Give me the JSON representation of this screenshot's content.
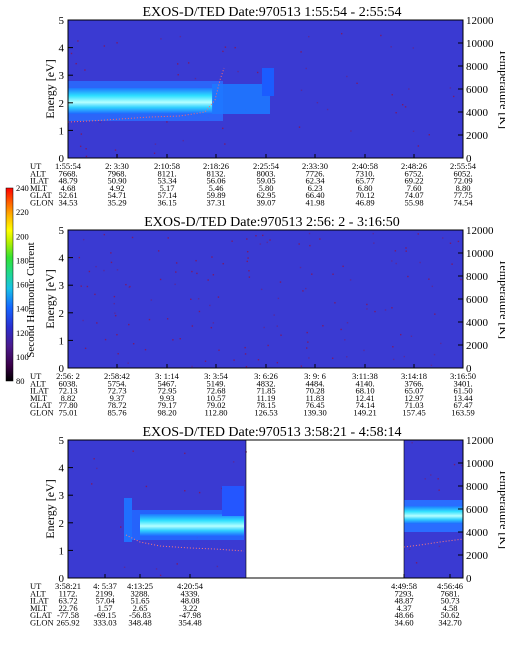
{
  "chart_data": [
    {
      "type": "heatmap",
      "title": "EXOS-D/TED   Date:970513  1:55:54 - 2:55:54",
      "ylabel": "Energy [eV]",
      "ylabel_right": "Temperature [K]",
      "ylim": [
        0,
        5
      ],
      "ylim_right": [
        0,
        12000
      ],
      "yticks": [
        "0",
        "1",
        "2",
        "3",
        "4",
        "5"
      ],
      "yticks_right": [
        "0",
        "2000",
        "4000",
        "6000",
        "8000",
        "10000",
        "12000"
      ],
      "band": {
        "from_time": "1:55:54",
        "to_time": "2:25:00",
        "energy_min": 1.6,
        "energy_max": 2.7,
        "note_level": "high"
      },
      "temperature_trace": "along band lower edge",
      "table": {
        "labels": [
          "UT",
          "ALT",
          "ILAT",
          "MLT",
          "GLAT",
          "GLON"
        ],
        "columns": [
          [
            "1:55:54",
            "7668.",
            "48.79",
            "4.68",
            "52.61",
            "34.53"
          ],
          [
            "2: 3:30",
            "7968.",
            "50.90",
            "4.92",
            "54.71",
            "35.29"
          ],
          [
            "2:10:58",
            "8121.",
            "53.34",
            "5.17",
            "57.14",
            "36.15"
          ],
          [
            "2:18:26",
            "8132.",
            "56.06",
            "5.46",
            "59.89",
            "37.31"
          ],
          [
            "2:25:54",
            "8003.",
            "59.05",
            "5.80",
            "62.95",
            "39.07"
          ],
          [
            "2:33:30",
            "7726.",
            "62.34",
            "6.23",
            "66.40",
            "41.98"
          ],
          [
            "2:40:58",
            "7310.",
            "65.77",
            "6.80",
            "70.12",
            "46.89"
          ],
          [
            "2:48:26",
            "6752.",
            "69.22",
            "7.60",
            "74.07",
            "55.98"
          ],
          [
            "2:55:54",
            "6052.",
            "72.09",
            "8.80",
            "77.75",
            "74.54"
          ]
        ]
      }
    },
    {
      "type": "heatmap",
      "title": "EXOS-D/TED   Date:970513  2:56: 2 - 3:16:50",
      "ylabel": "Energy [eV]",
      "ylabel_right": "Temperature [K]",
      "ylim": [
        0,
        5
      ],
      "ylim_right": [
        0,
        12000
      ],
      "yticks": [
        "0",
        "1",
        "2",
        "3",
        "4",
        "5"
      ],
      "yticks_right": [
        "0",
        "2000",
        "4000",
        "6000",
        "8000",
        "10000",
        "12000"
      ],
      "table": {
        "labels": [
          "UT",
          "ALT",
          "ILAT",
          "MLT",
          "GLAT",
          "GLON"
        ],
        "columns": [
          [
            "2:56: 2",
            "6038.",
            "72.13",
            "8.82",
            "77.80",
            "75.01"
          ],
          [
            "2:58:42",
            "5754.",
            "72.73",
            "9.37",
            "78.72",
            "85.76"
          ],
          [
            "3: 1:14",
            "5467.",
            "72.95",
            "9.93",
            "79.17",
            "98.20"
          ],
          [
            "3: 3:54",
            "5149.",
            "72.68",
            "10.57",
            "79.02",
            "112.80"
          ],
          [
            "3: 6:26",
            "4832.",
            "71.85",
            "11.19",
            "78.15",
            "126.53"
          ],
          [
            "3: 9: 6",
            "4484.",
            "70.28",
            "11.83",
            "76.45",
            "139.30"
          ],
          [
            "3:11:38",
            "4140.",
            "68.10",
            "12.41",
            "74.14",
            "149.21"
          ],
          [
            "3:14:18",
            "3766.",
            "65.07",
            "12.97",
            "71.03",
            "157.45"
          ],
          [
            "3:16:50",
            "3401.",
            "61.50",
            "13.44",
            "67.47",
            "163.59"
          ]
        ]
      }
    },
    {
      "type": "heatmap",
      "title": "EXOS-D/TED   Date:970513  3:58:21 - 4:58:14",
      "ylabel": "Energy [eV]",
      "ylabel_right": "Temperature [K]",
      "ylim": [
        0,
        5
      ],
      "ylim_right": [
        0,
        12000
      ],
      "yticks": [
        "0",
        "1",
        "2",
        "3",
        "4",
        "5"
      ],
      "yticks_right": [
        "0",
        "2000",
        "4000",
        "6000",
        "8000",
        "10000",
        "12000"
      ],
      "data_gap": {
        "from_time": "4:20:54",
        "to_time": "4:49:58"
      },
      "table": {
        "labels": [
          "UT",
          "ALT",
          "ILAT",
          "MLT",
          "GLAT",
          "GLON"
        ],
        "columns": [
          [
            "3:58:21",
            "1172.",
            "63.72",
            "22.76",
            "-77.58",
            "265.92"
          ],
          [
            "4: 5:37",
            "2199.",
            "57.04",
            "1.57",
            "-69.15",
            "333.03"
          ],
          [
            "4:13:25",
            "3288.",
            "51.65",
            "2.65",
            "-56.83",
            "348.48"
          ],
          [
            "4:20:54",
            "4339.",
            "48.08",
            "3.22",
            "-47.98",
            "354.48"
          ],
          [
            "4:49:58",
            "7293.",
            "48.87",
            "4.37",
            "48.66",
            "34.60"
          ],
          [
            "4:56:46",
            "7681.",
            "50.73",
            "4.58",
            "50.62",
            "342.70"
          ]
        ]
      }
    }
  ],
  "colorbar": {
    "label": "Second Harmonic Current",
    "ticks": [
      "80",
      "100",
      "120",
      "140",
      "160",
      "180",
      "200",
      "220",
      "240"
    ],
    "colors": [
      "#000000",
      "#3a0048",
      "#4b1a8c",
      "#2a2fd0",
      "#1565ff",
      "#19c2e6",
      "#21d98c",
      "#33e233",
      "#b7f000",
      "#ffff00",
      "#ffb000",
      "#ff5a00",
      "#ff0000"
    ]
  }
}
